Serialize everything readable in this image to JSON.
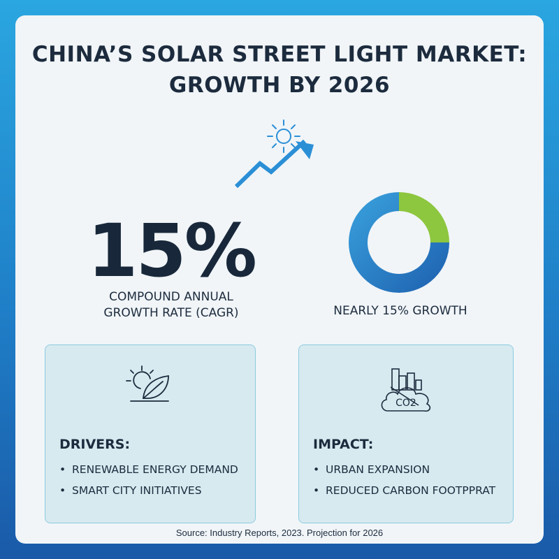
{
  "title": {
    "line1": "CHINA’S SOLAR STREET LIGHT MARKET:",
    "line2": "GROWTH BY 2026"
  },
  "icons": {
    "trend": "sun-trend-arrow-icon",
    "drivers": "sun-leaf-icon",
    "impact": "city-co2-cloud-icon"
  },
  "stat": {
    "value": "15%",
    "label_line1": "COMPOUND ANNUAL",
    "label_line2": "GROWTH RATE (CAGR)"
  },
  "donut": {
    "label": "NEARLY 15% GROWTH",
    "segments": [
      {
        "fraction": 0.75,
        "color": "#1d6fbe"
      },
      {
        "fraction": 0.25,
        "color": "#8dc63f"
      }
    ],
    "highlight_color": "#3aa3de"
  },
  "panels": {
    "drivers": {
      "heading": "DRIVERS:",
      "items": [
        "RENEWABLE ENERGY DEMAND",
        "SMART CITY INITIATIVES"
      ]
    },
    "impact": {
      "heading": "IMPACT:",
      "items": [
        "URBAN EXPANSION",
        "REDUCED CARBON FOOTPPRAT"
      ]
    }
  },
  "impact_icon_text": "CO2",
  "source": "Source: Industry Reports, 2023. Projection for 2026",
  "colors": {
    "text": "#1c2b3d",
    "accent_blue": "#2b8fd6",
    "panel_bg": "#d7eaf0",
    "panel_border": "#8ccbe0"
  }
}
